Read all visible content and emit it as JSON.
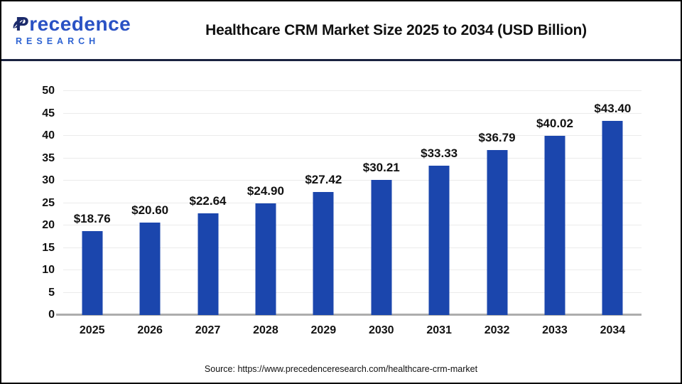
{
  "header": {
    "logo_line1": "Precedence",
    "logo_line2": "RESEARCH",
    "title": "Healthcare CRM Market Size 2025 to 2034 (USD Billion)"
  },
  "chart_data": {
    "type": "bar",
    "title": "Healthcare CRM Market Size 2025 to 2034 (USD Billion)",
    "categories": [
      "2025",
      "2026",
      "2027",
      "2028",
      "2029",
      "2030",
      "2031",
      "2032",
      "2033",
      "2034"
    ],
    "values": [
      18.76,
      20.6,
      22.64,
      24.9,
      27.42,
      30.21,
      33.33,
      36.79,
      40.02,
      43.4
    ],
    "value_labels": [
      "$18.76",
      "$20.60",
      "$22.64",
      "$24.90",
      "$27.42",
      "$30.21",
      "$33.33",
      "$36.79",
      "$40.02",
      "$43.40"
    ],
    "xlabel": "",
    "ylabel": "",
    "ylim": [
      0,
      50
    ],
    "yticks": [
      0,
      5,
      10,
      15,
      20,
      25,
      30,
      35,
      40,
      45,
      50
    ],
    "grid": true,
    "legend": "none",
    "bar_color": "#1b46ad"
  },
  "colors": {
    "bar": "#1b46ad",
    "divider": "#1a2240",
    "gridline": "#ebebeb",
    "axis_line": "#adadad",
    "logo_navy": "#1b2a6b",
    "logo_blue": "#2a52c4",
    "logo_research_blue": "#2e63d2"
  },
  "footer": {
    "source": "Source: https://www.precedenceresearch.com/healthcare-crm-market"
  }
}
